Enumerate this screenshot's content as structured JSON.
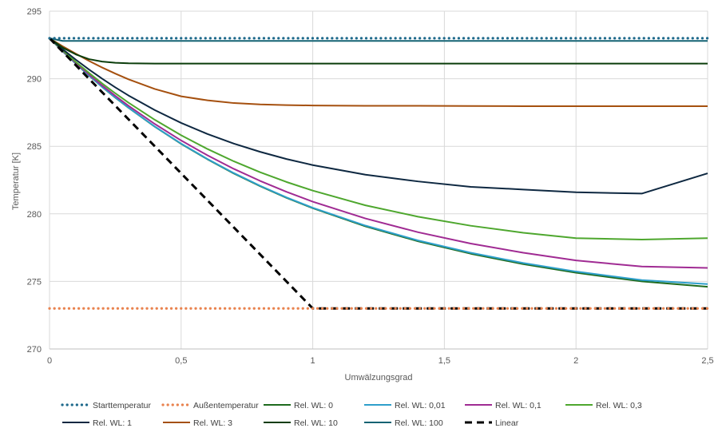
{
  "chart_data": {
    "type": "line",
    "title": "",
    "xlabel": "Umwälzungsgrad",
    "ylabel": "Temperatur [K]",
    "xlim": [
      0,
      2.5
    ],
    "ylim": [
      270,
      295
    ],
    "grid": true,
    "legend_position": "bottom",
    "x_ticks": [
      0,
      0.5,
      1,
      1.5,
      2,
      2.5
    ],
    "x_tick_labels": [
      "0",
      "0,5",
      "1",
      "1,5",
      "2",
      "2,5"
    ],
    "y_ticks": [
      270,
      275,
      280,
      285,
      290,
      295
    ],
    "y_tick_labels": [
      "270",
      "275",
      "280",
      "285",
      "290",
      "295"
    ],
    "x": [
      0,
      0.05,
      0.1,
      0.15,
      0.2,
      0.25,
      0.3,
      0.4,
      0.5,
      0.6,
      0.7,
      0.8,
      0.9,
      1.0,
      1.2,
      1.4,
      1.6,
      1.8,
      2.0,
      2.25,
      2.5
    ],
    "series": [
      {
        "name": "Starttemperatur",
        "color": "#1F6A8C",
        "style": "dotted",
        "values": [
          293,
          293,
          293,
          293,
          293,
          293,
          293,
          293,
          293,
          293,
          293,
          293,
          293,
          293,
          293,
          293,
          293,
          293,
          293,
          293,
          293
        ]
      },
      {
        "name": "Außentemperatur",
        "color": "#E9834F",
        "style": "dotted",
        "values": [
          273,
          273,
          273,
          273,
          273,
          273,
          273,
          273,
          273,
          273,
          273,
          273,
          273,
          273,
          273,
          273,
          273,
          273,
          273,
          273,
          273
        ]
      },
      {
        "name": "Rel. WL: 0",
        "color": "#1E6B1E",
        "style": "solid",
        "values": [
          293,
          292.03,
          291.11,
          290.23,
          289.39,
          288.6,
          287.85,
          286.45,
          285.18,
          284.04,
          282.99,
          282.05,
          281.19,
          280.42,
          279.08,
          277.97,
          277.05,
          276.28,
          275.64,
          275.0,
          274.6
        ]
      },
      {
        "name": "Rel. WL: 0,01",
        "color": "#2E9FCB",
        "style": "solid",
        "values": [
          293,
          292.03,
          291.12,
          290.24,
          289.4,
          288.61,
          287.86,
          286.46,
          285.2,
          284.06,
          283.02,
          282.08,
          281.22,
          280.45,
          279.13,
          278.03,
          277.12,
          276.36,
          275.73,
          275.1,
          274.8
        ]
      },
      {
        "name": "Rel. WL: 0,1",
        "color": "#A02B93",
        "style": "solid",
        "values": [
          293,
          292.06,
          291.17,
          290.32,
          289.5,
          288.73,
          288.0,
          286.65,
          285.43,
          284.33,
          283.33,
          282.44,
          281.63,
          280.9,
          279.66,
          278.64,
          277.8,
          277.12,
          276.55,
          276.1,
          276.0
        ]
      },
      {
        "name": "Rel. WL: 0,3",
        "color": "#4EA72E",
        "style": "solid",
        "values": [
          293,
          292.1,
          291.24,
          290.43,
          289.65,
          288.92,
          288.23,
          286.96,
          285.82,
          284.8,
          283.89,
          283.08,
          282.36,
          281.72,
          280.63,
          279.79,
          279.12,
          278.6,
          278.2,
          278.1,
          278.2
        ]
      },
      {
        "name": "Rel. WL: 1",
        "color": "#0E2841",
        "style": "solid",
        "values": [
          293,
          292.18,
          291.41,
          290.68,
          290.0,
          289.36,
          288.76,
          287.68,
          286.73,
          285.91,
          285.2,
          284.59,
          284.06,
          283.61,
          282.9,
          282.4,
          282.0,
          281.8,
          281.6,
          281.5,
          283.0
        ]
      },
      {
        "name": "Rel. WL: 3",
        "color": "#A5500F",
        "style": "solid",
        "values": [
          293,
          292.4,
          291.85,
          291.32,
          290.83,
          290.38,
          289.96,
          289.24,
          288.7,
          288.4,
          288.2,
          288.1,
          288.05,
          288.02,
          288.0,
          288.0,
          287.98,
          287.97,
          287.97,
          287.97,
          287.97
        ]
      },
      {
        "name": "Rel. WL: 10",
        "color": "#0B3D0B",
        "style": "solid",
        "values": [
          293,
          292.3,
          291.8,
          291.45,
          291.27,
          291.18,
          291.14,
          291.12,
          291.12,
          291.12,
          291.12,
          291.12,
          291.12,
          291.12,
          291.12,
          291.12,
          291.12,
          291.12,
          291.12,
          291.12,
          291.12
        ]
      },
      {
        "name": "Rel. WL: 100",
        "color": "#136273",
        "style": "solid",
        "values": [
          293,
          292.8,
          292.8,
          292.8,
          292.8,
          292.8,
          292.8,
          292.8,
          292.8,
          292.8,
          292.8,
          292.8,
          292.8,
          292.8,
          292.8,
          292.8,
          292.8,
          292.8,
          292.8,
          292.8,
          292.8
        ]
      },
      {
        "name": "Linear",
        "color": "#000000",
        "style": "dashed",
        "values": [
          293,
          292,
          291,
          290,
          289,
          288,
          287,
          285,
          283,
          281,
          279,
          277,
          275,
          273,
          273,
          273,
          273,
          273,
          273,
          273,
          273
        ]
      }
    ]
  }
}
